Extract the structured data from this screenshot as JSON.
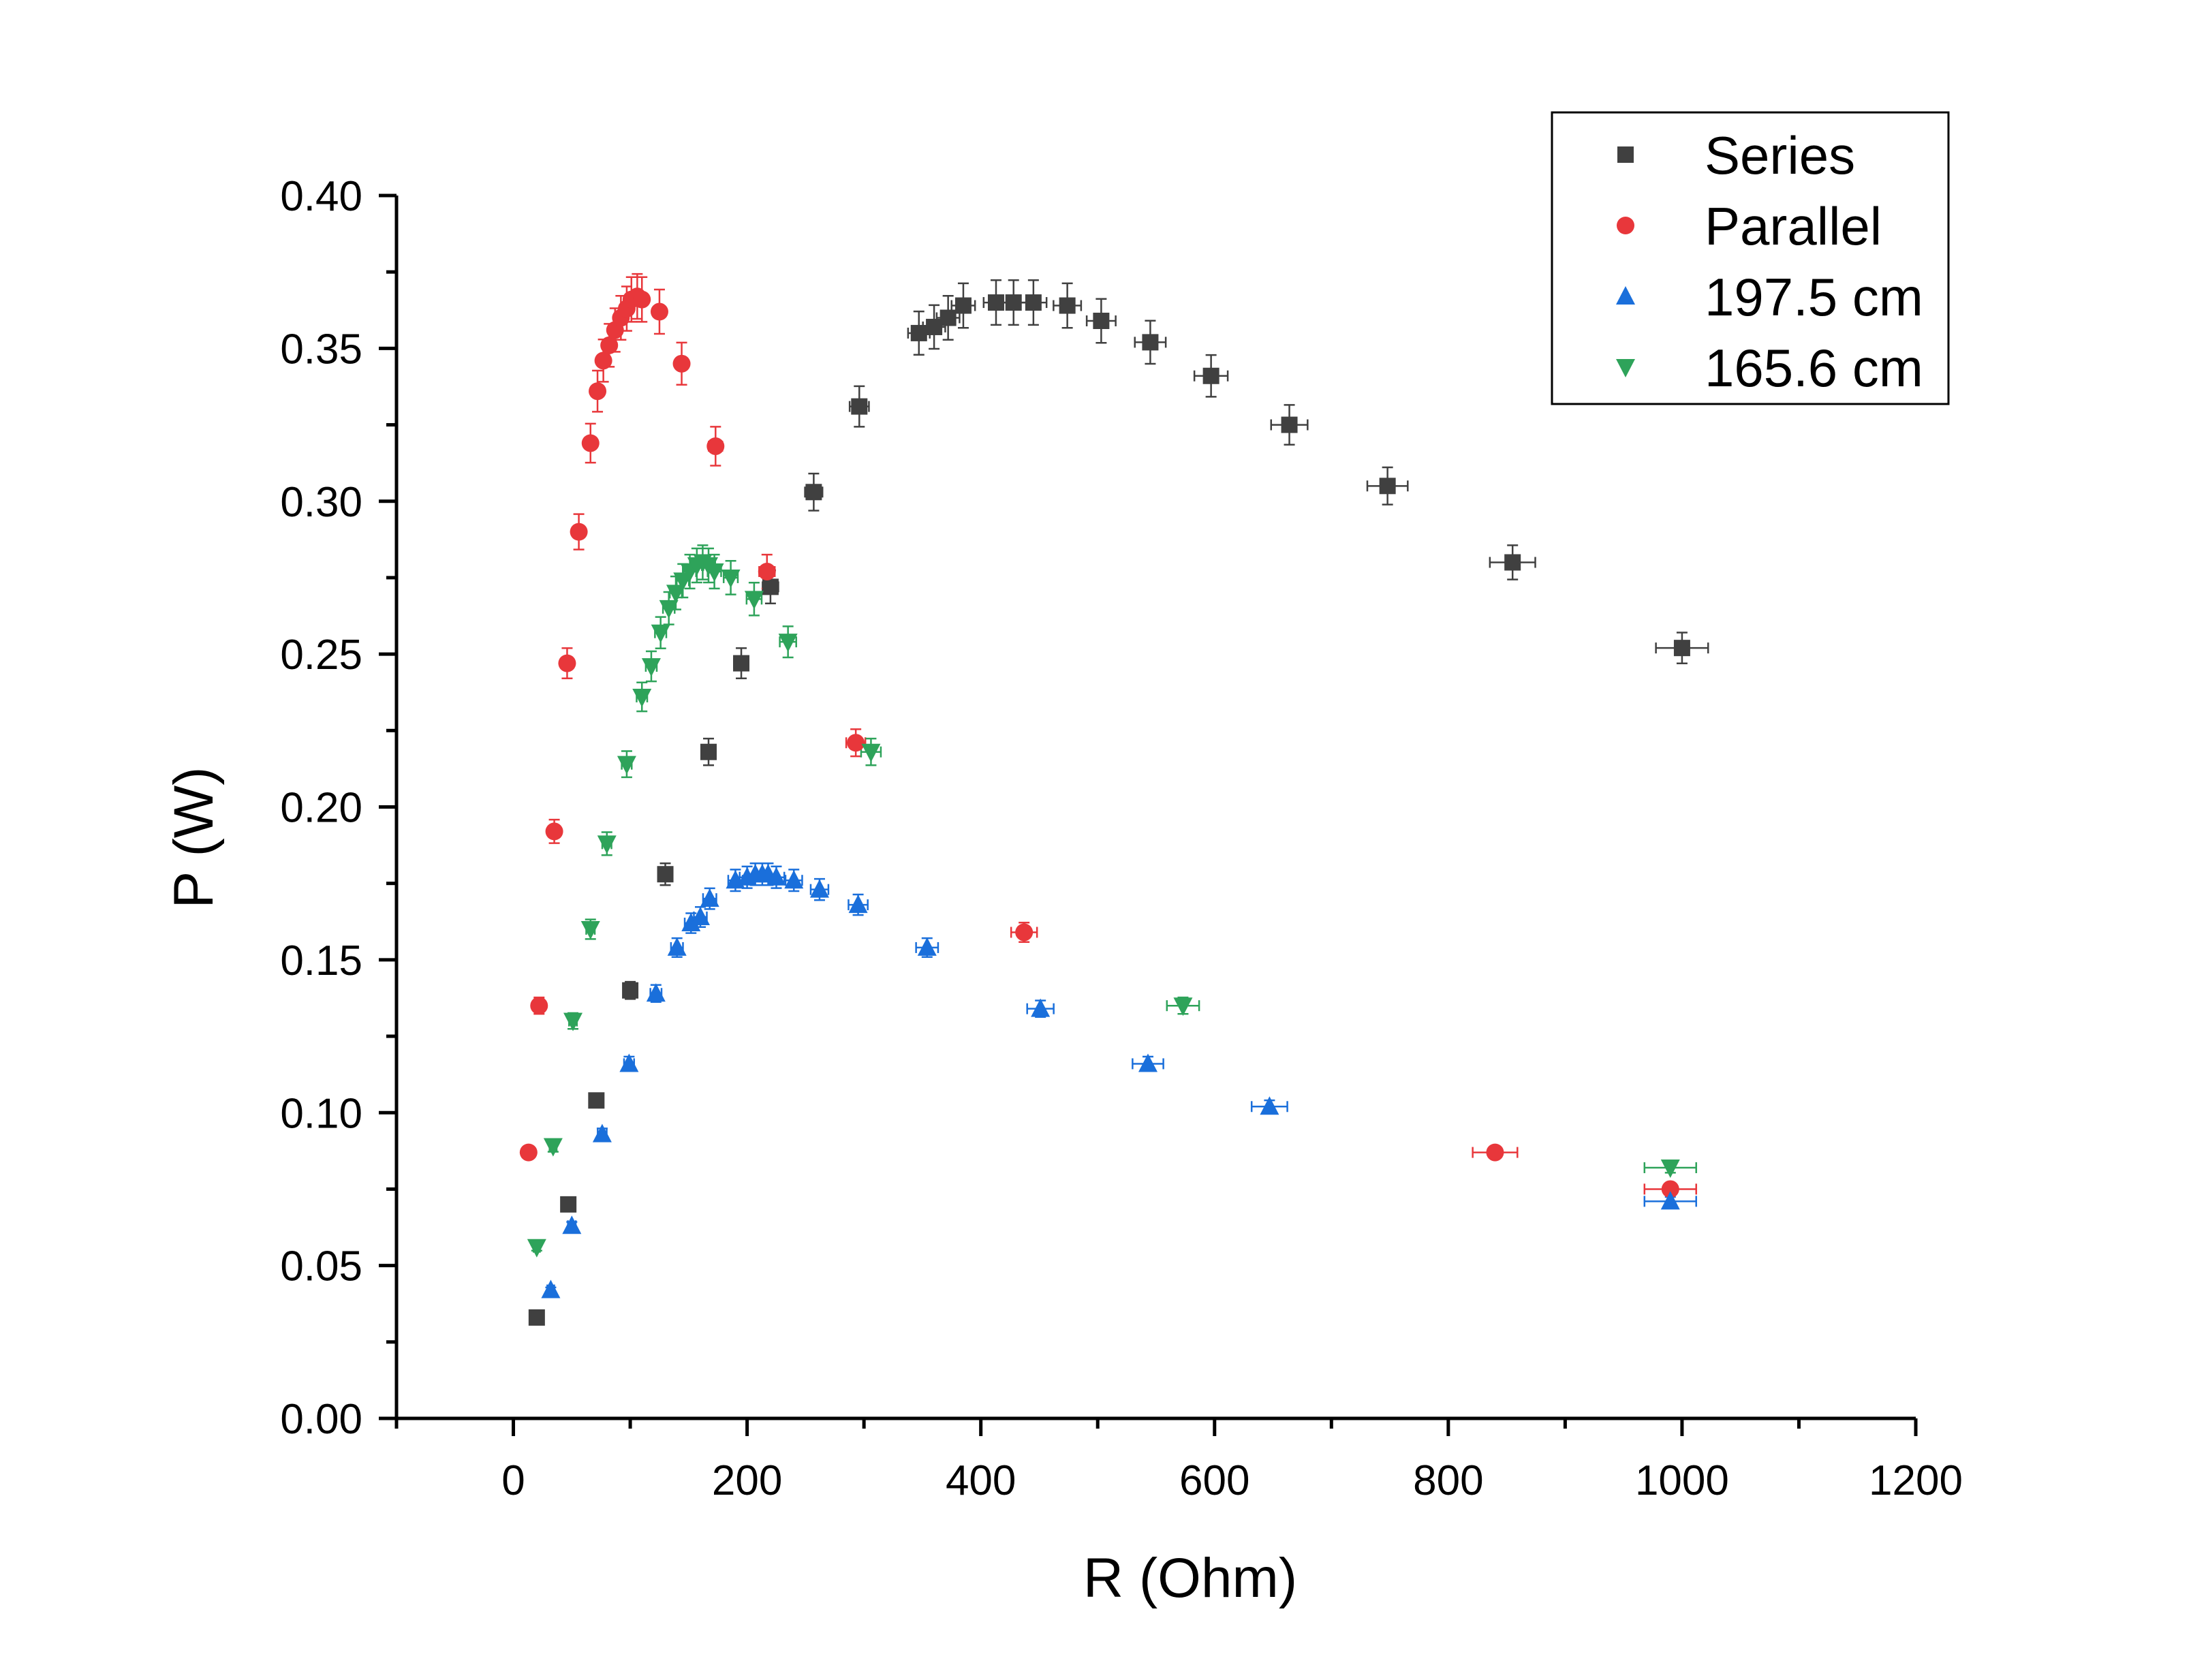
{
  "chart_data": {
    "type": "scatter",
    "title": "",
    "xlabel": "R (Ohm)",
    "ylabel": "P (W)",
    "xlim": [
      -100,
      1200
    ],
    "ylim": [
      0,
      0.4
    ],
    "xticks": [
      0,
      200,
      400,
      600,
      800,
      1000,
      1200
    ],
    "xtick_labels": [
      "0",
      "200",
      "400",
      "600",
      "800",
      "1000",
      "1200"
    ],
    "yticks": [
      0,
      0.05,
      0.1,
      0.15,
      0.2,
      0.25,
      0.3,
      0.35,
      0.4
    ],
    "ytick_labels": [
      "0.00",
      "0.05",
      "0.10",
      "0.15",
      "0.20",
      "0.25",
      "0.30",
      "0.35",
      "0.40"
    ],
    "grid": false,
    "legend_position": "top-right",
    "error_bars": true,
    "series": [
      {
        "name": "Series",
        "color": "#404040",
        "marker": "square",
        "points": [
          [
            20,
            0.033
          ],
          [
            47,
            0.07
          ],
          [
            71,
            0.104
          ],
          [
            100,
            0.14
          ],
          [
            130,
            0.178
          ],
          [
            167,
            0.218
          ],
          [
            195,
            0.247
          ],
          [
            220,
            0.272
          ],
          [
            257,
            0.303
          ],
          [
            296,
            0.331
          ],
          [
            347,
            0.355
          ],
          [
            360,
            0.357
          ],
          [
            372,
            0.36
          ],
          [
            385,
            0.364
          ],
          [
            413,
            0.365
          ],
          [
            428,
            0.365
          ],
          [
            445,
            0.365
          ],
          [
            474,
            0.364
          ],
          [
            503,
            0.359
          ],
          [
            545,
            0.352
          ],
          [
            597,
            0.341
          ],
          [
            664,
            0.325
          ],
          [
            748,
            0.305
          ],
          [
            855,
            0.28
          ],
          [
            1000,
            0.252
          ]
        ]
      },
      {
        "name": "Parallel",
        "color": "#e8373b",
        "marker": "circle",
        "points": [
          [
            13,
            0.087
          ],
          [
            22,
            0.135
          ],
          [
            35,
            0.192
          ],
          [
            46,
            0.247
          ],
          [
            56,
            0.29
          ],
          [
            66,
            0.319
          ],
          [
            72,
            0.336
          ],
          [
            77,
            0.346
          ],
          [
            82,
            0.351
          ],
          [
            87,
            0.356
          ],
          [
            92,
            0.36
          ],
          [
            97,
            0.363
          ],
          [
            101,
            0.366
          ],
          [
            106,
            0.367
          ],
          [
            110,
            0.366
          ],
          [
            125,
            0.362
          ],
          [
            144,
            0.345
          ],
          [
            173,
            0.318
          ],
          [
            217,
            0.277
          ],
          [
            293,
            0.221
          ],
          [
            437,
            0.159
          ],
          [
            840,
            0.087
          ],
          [
            990,
            0.075
          ]
        ]
      },
      {
        "name": "197.5 cm",
        "color": "#1a6fdb",
        "marker": "triangle-up",
        "points": [
          [
            32,
            0.042
          ],
          [
            50,
            0.063
          ],
          [
            76,
            0.093
          ],
          [
            99,
            0.116
          ],
          [
            122,
            0.139
          ],
          [
            140,
            0.154
          ],
          [
            152,
            0.162
          ],
          [
            160,
            0.164
          ],
          [
            168,
            0.17
          ],
          [
            190,
            0.176
          ],
          [
            200,
            0.177
          ],
          [
            207,
            0.178
          ],
          [
            213,
            0.178
          ],
          [
            218,
            0.178
          ],
          [
            225,
            0.177
          ],
          [
            240,
            0.176
          ],
          [
            262,
            0.173
          ],
          [
            295,
            0.168
          ],
          [
            354,
            0.154
          ],
          [
            451,
            0.134
          ],
          [
            543,
            0.116
          ],
          [
            647,
            0.102
          ],
          [
            990,
            0.071
          ]
        ]
      },
      {
        "name": "165.6 cm",
        "color": "#2ea35a",
        "marker": "triangle-down",
        "points": [
          [
            20,
            0.056
          ],
          [
            34,
            0.089
          ],
          [
            51,
            0.13
          ],
          [
            66,
            0.16
          ],
          [
            80,
            0.188
          ],
          [
            97,
            0.214
          ],
          [
            110,
            0.236
          ],
          [
            118,
            0.246
          ],
          [
            126,
            0.257
          ],
          [
            133,
            0.265
          ],
          [
            139,
            0.27
          ],
          [
            145,
            0.274
          ],
          [
            151,
            0.277
          ],
          [
            157,
            0.279
          ],
          [
            162,
            0.28
          ],
          [
            167,
            0.279
          ],
          [
            172,
            0.277
          ],
          [
            186,
            0.275
          ],
          [
            206,
            0.268
          ],
          [
            235,
            0.254
          ],
          [
            306,
            0.218
          ],
          [
            573,
            0.135
          ],
          [
            990,
            0.082
          ]
        ]
      }
    ]
  }
}
